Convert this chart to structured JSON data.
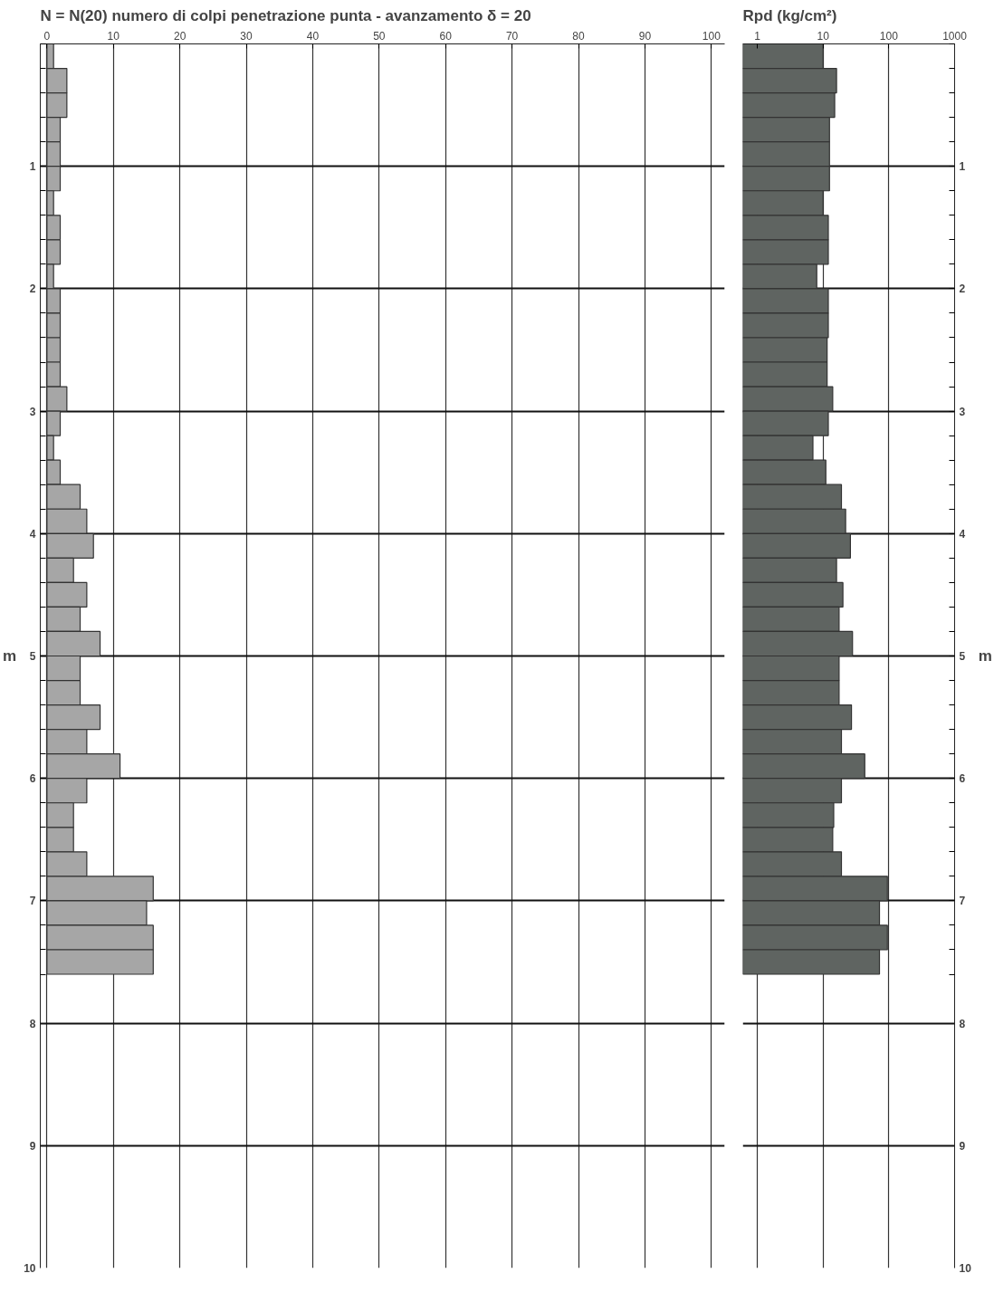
{
  "chart_data": [
    {
      "type": "bar",
      "orientation": "horizontal",
      "title": "N = N(20)  numero di colpi penetrazione punta  -  avanzamento  δ =  20",
      "ylabel": "m",
      "x": [
        0.1,
        0.3,
        0.5,
        0.7,
        0.9,
        1.1,
        1.3,
        1.5,
        1.7,
        1.9,
        2.1,
        2.3,
        2.5,
        2.7,
        2.9,
        3.1,
        3.3,
        3.5,
        3.7,
        3.9,
        4.1,
        4.3,
        4.5,
        4.7,
        4.9,
        5.1,
        5.3,
        5.5,
        5.7,
        5.9,
        6.1,
        6.3,
        6.5,
        6.7,
        6.9,
        7.1,
        7.3,
        7.5
      ],
      "values": [
        1,
        3,
        3,
        2,
        2,
        2,
        1,
        2,
        2,
        1,
        2,
        2,
        2,
        2,
        3,
        2,
        1,
        2,
        5,
        6,
        7,
        4,
        6,
        5,
        8,
        5,
        5,
        8,
        6,
        11,
        6,
        4,
        4,
        6,
        16,
        15,
        16,
        16
      ],
      "color": "#a6a6a6",
      "xlim": [
        -1,
        102
      ],
      "xticks": [
        0,
        10,
        20,
        30,
        40,
        50,
        60,
        70,
        80,
        90,
        100
      ],
      "ylim": [
        10,
        0
      ],
      "yticks": [
        1,
        2,
        3,
        4,
        5,
        6,
        7,
        8,
        9,
        10
      ],
      "grid": true
    },
    {
      "type": "bar",
      "orientation": "horizontal",
      "title": "Rpd (kg/cm²)",
      "ylabel": "m",
      "log": "x",
      "x": [
        0.1,
        0.3,
        0.5,
        0.7,
        0.9,
        1.1,
        1.3,
        1.5,
        1.7,
        1.9,
        2.1,
        2.3,
        2.5,
        2.7,
        2.9,
        3.1,
        3.3,
        3.5,
        3.7,
        3.9,
        4.1,
        4.3,
        4.5,
        4.7,
        4.9,
        5.1,
        5.3,
        5.5,
        5.7,
        5.9,
        6.1,
        6.3,
        6.5,
        6.7,
        6.9,
        7.1,
        7.3,
        7.5
      ],
      "values": [
        10,
        16,
        15,
        12.5,
        12.5,
        12.5,
        10,
        12,
        12,
        8,
        12,
        12,
        11.5,
        11.5,
        14,
        12,
        7,
        11,
        19,
        22,
        26,
        16,
        20,
        17.5,
        28,
        17.5,
        17.5,
        27,
        19,
        43,
        19,
        14.5,
        14,
        19,
        95,
        72,
        95,
        72
      ],
      "color": "#5f6461",
      "xlim": [
        0.6,
        1000
      ],
      "xticks": [
        1,
        10,
        100,
        1000
      ],
      "ylim": [
        10,
        0
      ],
      "yticks": [
        1,
        2,
        3,
        4,
        5,
        6,
        7,
        8,
        9,
        10
      ],
      "grid": true
    }
  ]
}
